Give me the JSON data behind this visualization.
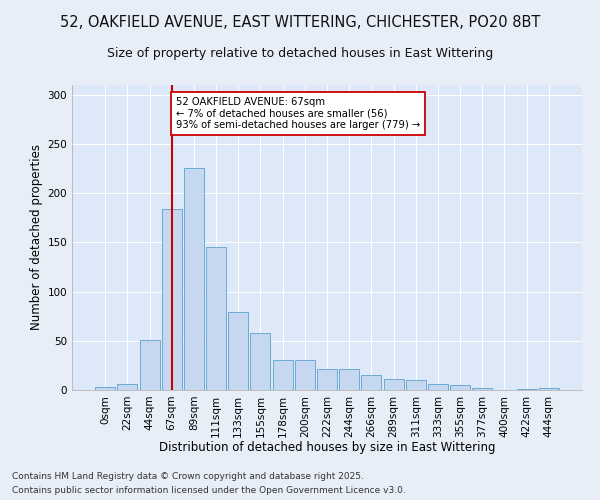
{
  "title1": "52, OAKFIELD AVENUE, EAST WITTERING, CHICHESTER, PO20 8BT",
  "title2": "Size of property relative to detached houses in East Wittering",
  "xlabel": "Distribution of detached houses by size in East Wittering",
  "ylabel": "Number of detached properties",
  "bar_labels": [
    "0sqm",
    "22sqm",
    "44sqm",
    "67sqm",
    "89sqm",
    "111sqm",
    "133sqm",
    "155sqm",
    "178sqm",
    "200sqm",
    "222sqm",
    "244sqm",
    "266sqm",
    "289sqm",
    "311sqm",
    "333sqm",
    "355sqm",
    "377sqm",
    "400sqm",
    "422sqm",
    "444sqm"
  ],
  "bar_values": [
    3,
    6,
    51,
    184,
    226,
    145,
    79,
    58,
    30,
    30,
    21,
    21,
    15,
    11,
    10,
    6,
    5,
    2,
    0,
    1,
    2
  ],
  "bar_color": "#c5d8f0",
  "bar_edge_color": "#6aaad4",
  "vline_x": 3,
  "vline_color": "#cc0000",
  "annotation_text": "52 OAKFIELD AVENUE: 67sqm\n← 7% of detached houses are smaller (56)\n93% of semi-detached houses are larger (779) →",
  "annotation_box_color": "#ffffff",
  "annotation_edge_color": "#cc0000",
  "ylim": [
    0,
    310
  ],
  "yticks": [
    0,
    50,
    100,
    150,
    200,
    250,
    300
  ],
  "bg_color": "#dde8f8",
  "fig_color": "#e8eef8",
  "footer1": "Contains HM Land Registry data © Crown copyright and database right 2025.",
  "footer2": "Contains public sector information licensed under the Open Government Licence v3.0.",
  "title_fontsize": 10.5,
  "subtitle_fontsize": 9,
  "axis_label_fontsize": 8.5,
  "tick_fontsize": 7.5,
  "footer_fontsize": 6.5
}
